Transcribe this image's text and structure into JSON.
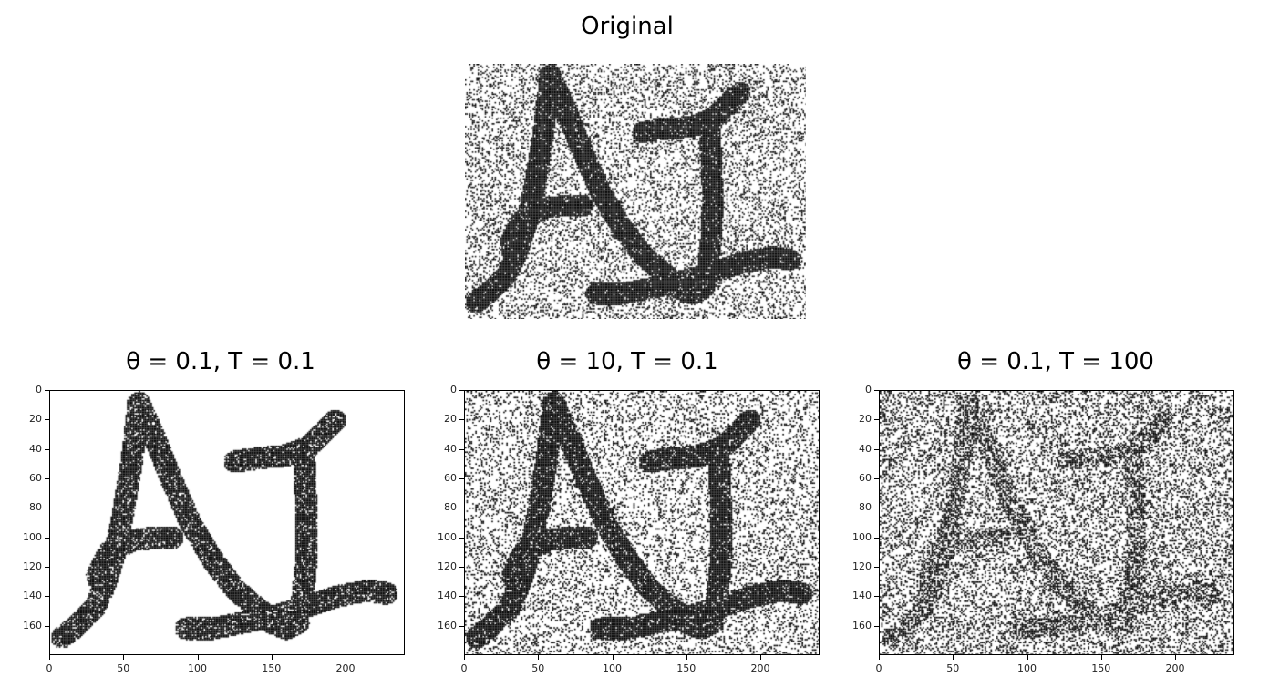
{
  "original": {
    "title": "Original"
  },
  "panels": [
    {
      "title": "θ = 0.1, T = 0.1",
      "noise": 0.0,
      "hole": 0.14,
      "thin": 1.0,
      "style": "blocky"
    },
    {
      "title": "θ = 10, T = 0.1",
      "noise": 0.2,
      "hole": 0.1,
      "thin": 1.0,
      "style": "fine"
    },
    {
      "title": "θ = 0.1, T = 100",
      "noise": 0.28,
      "hole": 0.45,
      "thin": 0.85,
      "style": "faded"
    }
  ],
  "axes": {
    "y_ticks": [
      "0",
      "20",
      "40",
      "60",
      "80",
      "100",
      "120",
      "140",
      "160"
    ],
    "x_ticks": [
      "0",
      "50",
      "100",
      "150",
      "200"
    ]
  }
}
